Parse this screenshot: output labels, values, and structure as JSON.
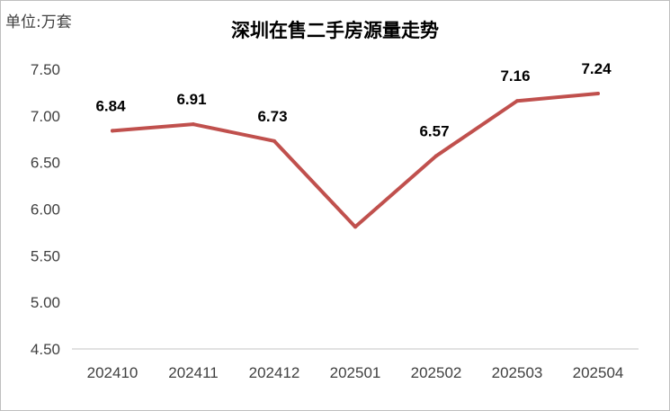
{
  "unit_label": "单位:万套",
  "chart_data": {
    "type": "line",
    "title": "深圳在售二手房源量走势",
    "unit": "单位:万套",
    "categories": [
      "202410",
      "202411",
      "202412",
      "202501",
      "202502",
      "202503",
      "202504"
    ],
    "series": [
      {
        "values": [
          6.84,
          6.91,
          6.73,
          5.81,
          6.57,
          7.16,
          7.24
        ],
        "labels": [
          "6.84",
          "6.91",
          "6.73",
          "",
          "6.57",
          "7.16",
          "7.24"
        ],
        "color": "#c0504d"
      }
    ],
    "yticks": [
      "7.50",
      "7.00",
      "6.50",
      "6.00",
      "5.50",
      "5.00",
      "4.50"
    ],
    "ylim": [
      4.5,
      7.5
    ],
    "grid": false,
    "legend": "none"
  }
}
